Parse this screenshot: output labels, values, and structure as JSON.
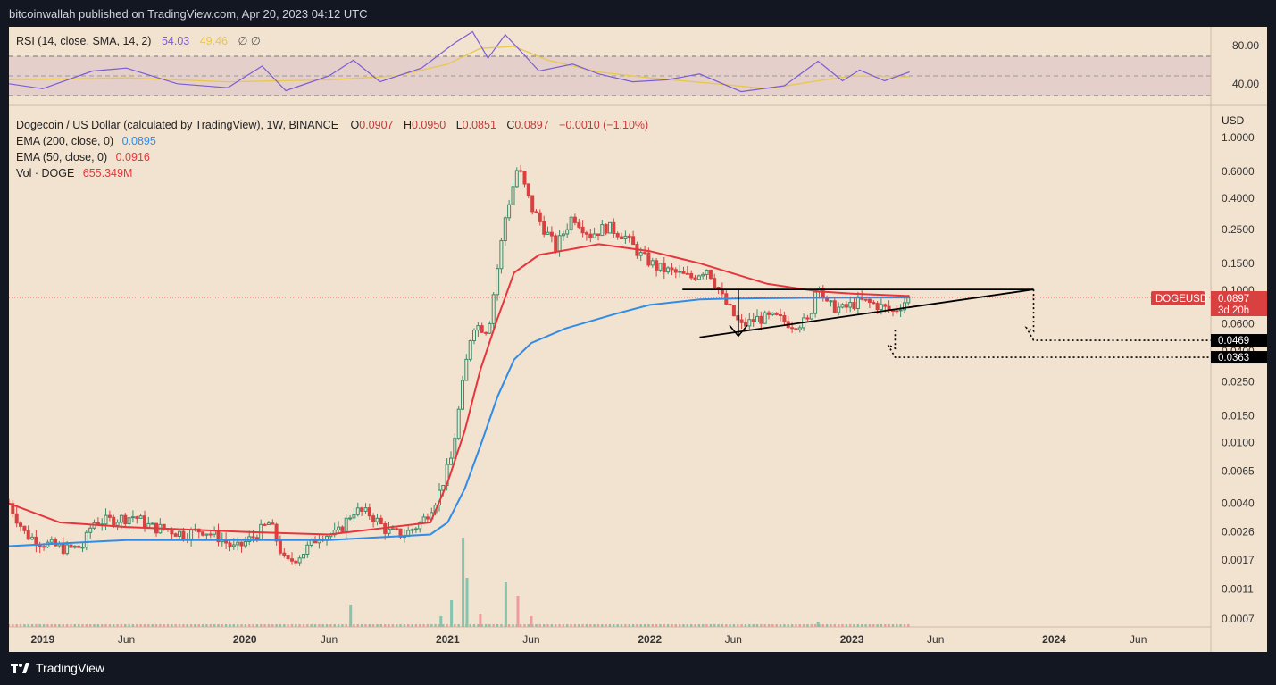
{
  "header": {
    "text": "bitcoinwallah published on TradingView.com, Apr 20, 2023 04:12 UTC"
  },
  "footer": {
    "brand": "TradingView"
  },
  "rsi": {
    "label": "RSI (14, close, SMA, 14, 2)",
    "value": "54.03",
    "sma_value": "49.46",
    "extra": "∅ ∅",
    "levels": [
      "80.00",
      "40.00"
    ]
  },
  "legend": {
    "symbol_line": "Dogecoin / US Dollar (calculated by TradingView), 1W, BINANCE",
    "ohlc": [
      {
        "k": "O",
        "v": "0.0907"
      },
      {
        "k": "H",
        "v": "0.0950"
      },
      {
        "k": "L",
        "v": "0.0851"
      },
      {
        "k": "C",
        "v": "0.0897"
      }
    ],
    "change": "−0.0010 (−1.10%)",
    "ema200_label": "EMA (200, close, 0)",
    "ema200_value": "0.0895",
    "ema50_label": "EMA (50, close, 0)",
    "ema50_value": "0.0916",
    "vol_label": "Vol · DOGE",
    "vol_value": "655.349M"
  },
  "price_tag": {
    "symbol": "DOGEUSD",
    "value": "0.0897",
    "countdown": "3d 20h"
  },
  "target_labels": [
    "0.0469",
    "0.0363"
  ],
  "colors": {
    "background": "#f2e2d0",
    "up": "#3c8c6a",
    "down": "#d94040",
    "ema200": "#2f8ce8",
    "ema50": "#e8353c",
    "rsi": "#7c5cd6",
    "rsi_sma": "#e8c84a",
    "volume_up": "#86c4ae",
    "volume_down": "#ec9c9c"
  },
  "chart_data": {
    "type": "line",
    "scale": "log",
    "currency": "USD",
    "yticks": [
      1.0,
      0.6,
      0.4,
      0.25,
      0.15,
      0.1,
      0.06,
      0.04,
      0.025,
      0.015,
      0.01,
      0.0065,
      0.004,
      0.0026,
      0.0017,
      0.0011,
      0.0007
    ],
    "ytick_labels": [
      "1.0000",
      "0.6000",
      "0.4000",
      "0.2500",
      "0.1500",
      "0.1000",
      "0.0600",
      "0.0400",
      "0.0250",
      "0.0150",
      "0.0100",
      "0.0065",
      "0.0040",
      "0.0026",
      "0.0017",
      "0.0011",
      "0.0007"
    ],
    "xlim": [
      "2018-11-01",
      "2024-10-10"
    ],
    "xticks": [
      {
        "label": "2019",
        "date": "2019-01-01"
      },
      {
        "label": "Jun",
        "date": "2019-06-01"
      },
      {
        "label": "2020",
        "date": "2020-01-01"
      },
      {
        "label": "Jun",
        "date": "2020-06-01"
      },
      {
        "label": "2021",
        "date": "2021-01-01"
      },
      {
        "label": "Jun",
        "date": "2021-06-01"
      },
      {
        "label": "2022",
        "date": "2022-01-01"
      },
      {
        "label": "Jun",
        "date": "2022-06-01"
      },
      {
        "label": "2023",
        "date": "2023-01-01"
      },
      {
        "label": "Jun",
        "date": "2023-06-01"
      },
      {
        "label": "2024",
        "date": "2024-01-01"
      },
      {
        "label": "Jun",
        "date": "2024-06-01"
      }
    ],
    "price_path": [
      [
        "2018-11-01",
        0.004
      ],
      [
        "2018-12-01",
        0.0025
      ],
      [
        "2019-01-01",
        0.0022
      ],
      [
        "2019-02-15",
        0.002
      ],
      [
        "2019-03-15",
        0.0021
      ],
      [
        "2019-04-01",
        0.003
      ],
      [
        "2019-05-01",
        0.0031
      ],
      [
        "2019-06-15",
        0.0033
      ],
      [
        "2019-07-15",
        0.0028
      ],
      [
        "2019-08-15",
        0.0027
      ],
      [
        "2019-09-15",
        0.0025
      ],
      [
        "2019-10-15",
        0.0027
      ],
      [
        "2019-11-15",
        0.0024
      ],
      [
        "2019-12-15",
        0.002
      ],
      [
        "2020-01-15",
        0.0024
      ],
      [
        "2020-02-15",
        0.003
      ],
      [
        "2020-03-15",
        0.0016
      ],
      [
        "2020-04-15",
        0.0019
      ],
      [
        "2020-05-15",
        0.0025
      ],
      [
        "2020-06-15",
        0.0025
      ],
      [
        "2020-07-15",
        0.0036
      ],
      [
        "2020-08-15",
        0.0034
      ],
      [
        "2020-09-15",
        0.0026
      ],
      [
        "2020-10-15",
        0.0025
      ],
      [
        "2020-11-15",
        0.003
      ],
      [
        "2020-12-15",
        0.0045
      ],
      [
        "2021-01-08",
        0.008
      ],
      [
        "2021-01-29",
        0.025
      ],
      [
        "2021-02-15",
        0.06
      ],
      [
        "2021-03-15",
        0.055
      ],
      [
        "2021-04-15",
        0.3
      ],
      [
        "2021-05-08",
        0.65
      ],
      [
        "2021-06-01",
        0.35
      ],
      [
        "2021-07-15",
        0.19
      ],
      [
        "2021-08-15",
        0.31
      ],
      [
        "2021-09-15",
        0.23
      ],
      [
        "2021-10-15",
        0.26
      ],
      [
        "2021-11-15",
        0.23
      ],
      [
        "2021-12-15",
        0.17
      ],
      [
        "2022-01-15",
        0.14
      ],
      [
        "2022-02-15",
        0.13
      ],
      [
        "2022-03-15",
        0.12
      ],
      [
        "2022-04-15",
        0.14
      ],
      [
        "2022-05-15",
        0.085
      ],
      [
        "2022-06-15",
        0.058
      ],
      [
        "2022-07-15",
        0.065
      ],
      [
        "2022-08-15",
        0.066
      ],
      [
        "2022-09-15",
        0.06
      ],
      [
        "2022-10-15",
        0.062
      ],
      [
        "2022-11-01",
        0.12
      ],
      [
        "2022-11-15",
        0.08
      ],
      [
        "2022-12-15",
        0.075
      ],
      [
        "2023-01-15",
        0.085
      ],
      [
        "2023-02-15",
        0.08
      ],
      [
        "2023-03-15",
        0.072
      ],
      [
        "2023-04-15",
        0.0897
      ]
    ],
    "series": [
      {
        "name": "EMA (200, close, 0)",
        "points": [
          [
            "2018-11-01",
            0.0021
          ],
          [
            "2019-06-01",
            0.0023
          ],
          [
            "2020-01-01",
            0.0023
          ],
          [
            "2020-06-01",
            0.0023
          ],
          [
            "2020-12-01",
            0.0025
          ],
          [
            "2021-01-01",
            0.003
          ],
          [
            "2021-02-01",
            0.005
          ],
          [
            "2021-03-01",
            0.0095
          ],
          [
            "2021-04-01",
            0.02
          ],
          [
            "2021-05-01",
            0.035
          ],
          [
            "2021-06-01",
            0.045
          ],
          [
            "2021-08-01",
            0.056
          ],
          [
            "2021-11-01",
            0.07
          ],
          [
            "2022-01-01",
            0.08
          ],
          [
            "2022-04-01",
            0.087
          ],
          [
            "2022-06-01",
            0.088
          ],
          [
            "2022-10-01",
            0.089
          ],
          [
            "2023-01-01",
            0.0892
          ],
          [
            "2023-04-15",
            0.0895
          ]
        ]
      },
      {
        "name": "EMA (50, close, 0)",
        "points": [
          [
            "2018-11-01",
            0.004
          ],
          [
            "2019-02-01",
            0.003
          ],
          [
            "2019-06-01",
            0.0028
          ],
          [
            "2020-01-01",
            0.0026
          ],
          [
            "2020-06-01",
            0.0025
          ],
          [
            "2020-12-01",
            0.003
          ],
          [
            "2021-01-01",
            0.0055
          ],
          [
            "2021-02-01",
            0.012
          ],
          [
            "2021-03-01",
            0.03
          ],
          [
            "2021-04-01",
            0.065
          ],
          [
            "2021-05-01",
            0.13
          ],
          [
            "2021-06-15",
            0.17
          ],
          [
            "2021-10-01",
            0.2
          ],
          [
            "2022-01-01",
            0.18
          ],
          [
            "2022-04-01",
            0.15
          ],
          [
            "2022-08-01",
            0.11
          ],
          [
            "2022-11-01",
            0.098
          ],
          [
            "2023-01-01",
            0.095
          ],
          [
            "2023-04-15",
            0.0916
          ]
        ]
      }
    ],
    "annotations": {
      "resistance_level": 0.101,
      "resistance_span": [
        "2022-03-01",
        "2023-11-25"
      ],
      "support_line": [
        [
          "2022-04-01",
          0.049
        ],
        [
          "2023-11-25",
          0.101
        ]
      ],
      "targets": [
        0.0469,
        0.0363
      ]
    },
    "rsi": {
      "ylim": [
        25,
        100
      ],
      "levels": [
        70,
        50,
        30
      ],
      "points": [
        [
          "2018-11-01",
          42
        ],
        [
          "2019-01-01",
          37
        ],
        [
          "2019-04-01",
          55
        ],
        [
          "2019-06-01",
          58
        ],
        [
          "2019-09-01",
          42
        ],
        [
          "2019-12-01",
          38
        ],
        [
          "2020-02-01",
          60
        ],
        [
          "2020-03-15",
          35
        ],
        [
          "2020-06-01",
          50
        ],
        [
          "2020-07-15",
          66
        ],
        [
          "2020-09-01",
          44
        ],
        [
          "2020-11-15",
          58
        ],
        [
          "2021-01-15",
          84
        ],
        [
          "2021-02-15",
          95
        ],
        [
          "2021-03-15",
          68
        ],
        [
          "2021-04-15",
          92
        ],
        [
          "2021-05-15",
          74
        ],
        [
          "2021-06-15",
          55
        ],
        [
          "2021-08-15",
          62
        ],
        [
          "2021-10-01",
          52
        ],
        [
          "2021-12-01",
          44
        ],
        [
          "2022-02-01",
          46
        ],
        [
          "2022-04-01",
          52
        ],
        [
          "2022-06-15",
          34
        ],
        [
          "2022-09-01",
          40
        ],
        [
          "2022-11-01",
          65
        ],
        [
          "2022-12-15",
          45
        ],
        [
          "2023-01-15",
          56
        ],
        [
          "2023-03-01",
          45
        ],
        [
          "2023-04-15",
          54
        ]
      ],
      "sma_points": [
        [
          "2018-11-01",
          46
        ],
        [
          "2019-06-01",
          48
        ],
        [
          "2019-12-01",
          44
        ],
        [
          "2020-06-01",
          46
        ],
        [
          "2020-10-01",
          50
        ],
        [
          "2021-01-01",
          62
        ],
        [
          "2021-03-01",
          78
        ],
        [
          "2021-05-01",
          80
        ],
        [
          "2021-07-01",
          66
        ],
        [
          "2021-10-01",
          54
        ],
        [
          "2022-01-01",
          48
        ],
        [
          "2022-05-01",
          42
        ],
        [
          "2022-08-01",
          37
        ],
        [
          "2022-11-01",
          45
        ],
        [
          "2023-01-01",
          50
        ],
        [
          "2023-04-15",
          49
        ]
      ]
    },
    "volume_spikes": [
      [
        "2020-07-10",
        0.25,
        "up"
      ],
      [
        "2021-01-29",
        1.0,
        "up"
      ],
      [
        "2021-02-05",
        0.55,
        "up"
      ],
      [
        "2021-04-16",
        0.5,
        "up"
      ],
      [
        "2021-05-08",
        0.35,
        "down"
      ],
      [
        "2021-01-08",
        0.3,
        "up"
      ],
      [
        "2020-12-20",
        0.12,
        "up"
      ],
      [
        "2021-03-01",
        0.15,
        "down"
      ],
      [
        "2021-06-01",
        0.12,
        "down"
      ],
      [
        "2022-11-01",
        0.06,
        "up"
      ]
    ]
  }
}
